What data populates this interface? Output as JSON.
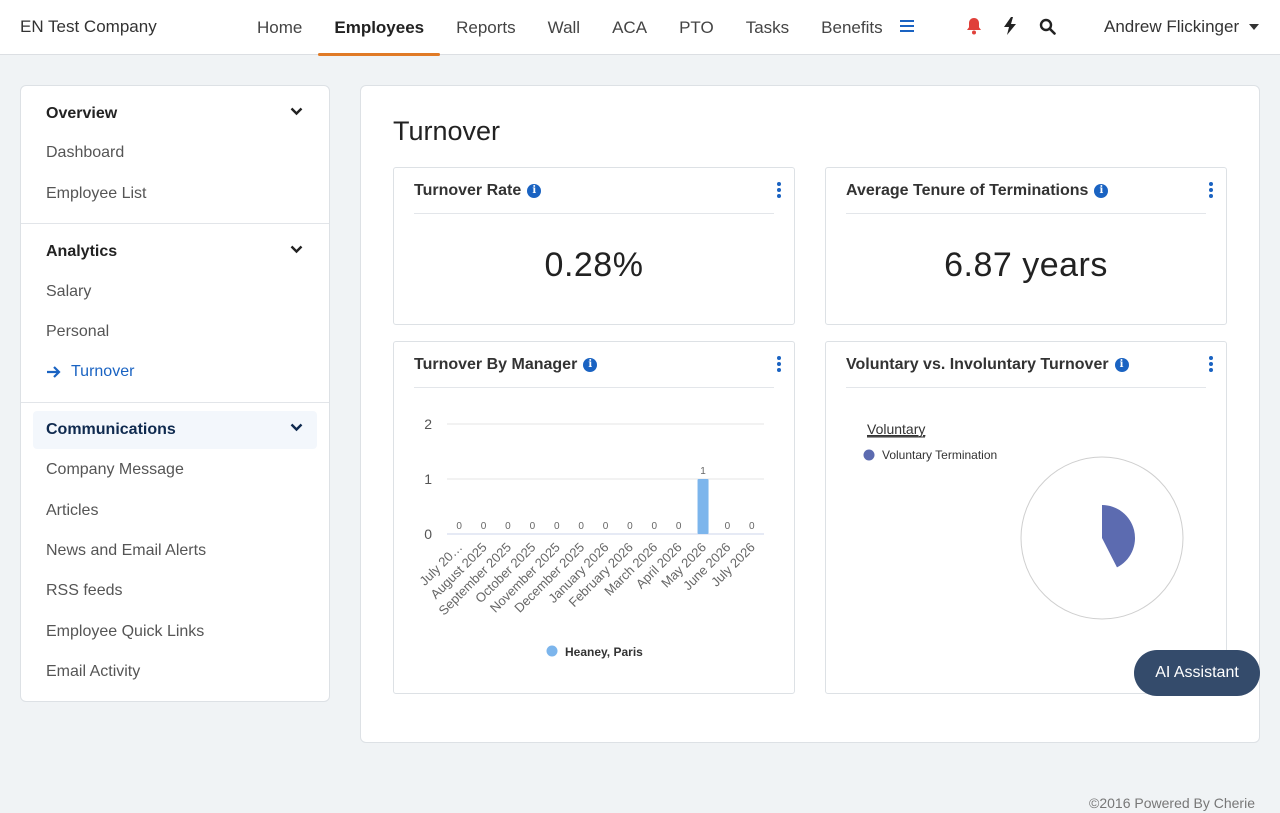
{
  "header": {
    "company": "EN Test Company",
    "nav": [
      "Home",
      "Employees",
      "Reports",
      "Wall",
      "ACA",
      "PTO",
      "Tasks",
      "Benefits"
    ],
    "active_nav": "Employees",
    "user": "Andrew Flickinger",
    "icons": [
      "menu-icon",
      "bell-icon",
      "bolt-icon",
      "search-icon"
    ],
    "colors": {
      "accent": "#1a63c2",
      "active_underline": "#e07a26",
      "bell": "#e0403a"
    }
  },
  "sidebar": {
    "overview": {
      "label": "Overview",
      "items": [
        "Dashboard",
        "Employee List"
      ]
    },
    "analytics": {
      "label": "Analytics",
      "items": [
        "Salary",
        "Personal",
        "Turnover"
      ],
      "current": "Turnover"
    },
    "communications": {
      "label": "Communications",
      "items": [
        "Company Message",
        "Articles",
        "News and Email Alerts",
        "RSS feeds",
        "Employee Quick Links",
        "Email Activity"
      ]
    }
  },
  "main": {
    "title": "Turnover",
    "cards": {
      "turnover_rate": {
        "title": "Turnover Rate",
        "value": "0.28%"
      },
      "avg_tenure": {
        "title": "Average Tenure of Terminations",
        "value": "6.87 years"
      },
      "by_manager": {
        "title": "Turnover By Manager"
      },
      "vol_invol": {
        "title": "Voluntary vs. Involuntary Turnover"
      }
    }
  },
  "ai_button": "AI Assistant",
  "footer": "©2016 Powered By Cherie",
  "chart_data": [
    {
      "type": "bar",
      "categories": [
        "July 20…",
        "August 2025",
        "September 2025",
        "October 2025",
        "November 2025",
        "December 2025",
        "January 2026",
        "February 2026",
        "March 2026",
        "April 2026",
        "May 2026",
        "June 2026",
        "July 2026"
      ],
      "series": [
        {
          "name": "Heaney, Paris",
          "values": [
            0,
            0,
            0,
            0,
            0,
            0,
            0,
            0,
            0,
            0,
            1,
            0,
            0
          ],
          "color": "#7cb5ec"
        }
      ],
      "yticks": [
        0,
        1,
        2
      ],
      "ylim": [
        0,
        2
      ],
      "grid": true,
      "legend": "bottom"
    },
    {
      "type": "pie",
      "title": "Voluntary",
      "series": [
        {
          "name": "Voluntary Termination",
          "values": [
            1
          ],
          "color": "#5c6bb0"
        }
      ],
      "legend": "top-left"
    }
  ]
}
